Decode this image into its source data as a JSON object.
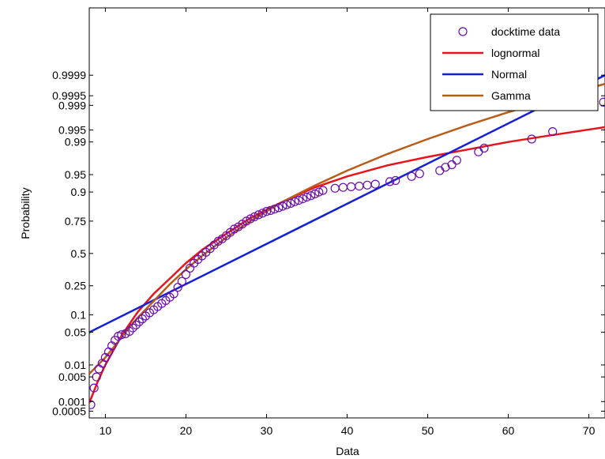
{
  "chart_data": {
    "type": "scatter",
    "xlabel": "Data",
    "ylabel": "Probability",
    "xlim": [
      8,
      72
    ],
    "xscale": "linear",
    "yscale": "normal-probability",
    "ylim_probability": [
      0.0003,
      0.99999985
    ],
    "xticks": [
      10,
      20,
      30,
      40,
      50,
      60,
      70
    ],
    "yticks": [
      {
        "p": 0.0005,
        "label": "0.0005"
      },
      {
        "p": 0.001,
        "label": "0.001"
      },
      {
        "p": 0.005,
        "label": "0.005"
      },
      {
        "p": 0.01,
        "label": "0.01"
      },
      {
        "p": 0.05,
        "label": "0.05"
      },
      {
        "p": 0.1,
        "label": "0.1"
      },
      {
        "p": 0.25,
        "label": "0.25"
      },
      {
        "p": 0.5,
        "label": "0.5"
      },
      {
        "p": 0.75,
        "label": "0.75"
      },
      {
        "p": 0.9,
        "label": "0.9"
      },
      {
        "p": 0.95,
        "label": "0.95"
      },
      {
        "p": 0.99,
        "label": "0.99"
      },
      {
        "p": 0.995,
        "label": "0.995"
      },
      {
        "p": 0.999,
        "label": "0.999"
      },
      {
        "p": 0.9995,
        "label": "0.9995"
      },
      {
        "p": 0.9999,
        "label": "0.9999"
      }
    ],
    "grid": false,
    "legend_position": "top-right",
    "series": [
      {
        "name": "docktime data",
        "kind": "markers",
        "marker": "circle",
        "color": "#6a0dad",
        "points": [
          [
            8.2,
            0.0008
          ],
          [
            8.6,
            0.0025
          ],
          [
            8.9,
            0.005
          ],
          [
            9.2,
            0.008
          ],
          [
            9.6,
            0.011
          ],
          [
            10.0,
            0.015
          ],
          [
            10.4,
            0.02
          ],
          [
            10.8,
            0.027
          ],
          [
            11.2,
            0.035
          ],
          [
            11.6,
            0.042
          ],
          [
            12.0,
            0.045
          ],
          [
            12.5,
            0.047
          ],
          [
            13.0,
            0.052
          ],
          [
            13.4,
            0.06
          ],
          [
            13.8,
            0.068
          ],
          [
            14.2,
            0.077
          ],
          [
            14.6,
            0.086
          ],
          [
            15.0,
            0.096
          ],
          [
            15.5,
            0.108
          ],
          [
            16.0,
            0.12
          ],
          [
            16.5,
            0.134
          ],
          [
            17.0,
            0.148
          ],
          [
            17.5,
            0.163
          ],
          [
            18.0,
            0.18
          ],
          [
            18.5,
            0.2
          ],
          [
            19.0,
            0.24
          ],
          [
            19.5,
            0.28
          ],
          [
            20.0,
            0.33
          ],
          [
            20.5,
            0.38
          ],
          [
            21.0,
            0.42
          ],
          [
            21.5,
            0.45
          ],
          [
            22.0,
            0.48
          ],
          [
            22.5,
            0.51
          ],
          [
            23.0,
            0.54
          ],
          [
            23.5,
            0.57
          ],
          [
            24.0,
            0.6
          ],
          [
            24.5,
            0.62
          ],
          [
            25.0,
            0.645
          ],
          [
            25.5,
            0.67
          ],
          [
            26.0,
            0.695
          ],
          [
            26.5,
            0.71
          ],
          [
            27.0,
            0.73
          ],
          [
            27.5,
            0.75
          ],
          [
            28.0,
            0.765
          ],
          [
            28.5,
            0.778
          ],
          [
            29.0,
            0.79
          ],
          [
            29.5,
            0.8
          ],
          [
            30.0,
            0.81
          ],
          [
            30.5,
            0.815
          ],
          [
            31.0,
            0.823
          ],
          [
            31.5,
            0.83
          ],
          [
            32.0,
            0.838
          ],
          [
            32.5,
            0.845
          ],
          [
            33.0,
            0.852
          ],
          [
            33.5,
            0.86
          ],
          [
            34.0,
            0.866
          ],
          [
            34.5,
            0.873
          ],
          [
            35.0,
            0.88
          ],
          [
            35.5,
            0.886
          ],
          [
            36.0,
            0.893
          ],
          [
            36.5,
            0.9
          ],
          [
            37.0,
            0.906
          ],
          [
            38.5,
            0.913
          ],
          [
            39.5,
            0.916
          ],
          [
            40.5,
            0.918
          ],
          [
            41.5,
            0.92
          ],
          [
            42.5,
            0.923
          ],
          [
            43.5,
            0.926
          ],
          [
            45.3,
            0.933
          ],
          [
            46.0,
            0.936
          ],
          [
            48.0,
            0.946
          ],
          [
            49.0,
            0.952
          ],
          [
            51.5,
            0.958
          ],
          [
            52.2,
            0.964
          ],
          [
            53.0,
            0.968
          ],
          [
            53.6,
            0.974
          ],
          [
            56.3,
            0.983
          ],
          [
            57.0,
            0.986
          ],
          [
            62.9,
            0.9915
          ],
          [
            65.5,
            0.9945
          ],
          [
            71.8,
            0.9992
          ]
        ]
      },
      {
        "name": "lognormal",
        "kind": "line",
        "color": "#e8141c",
        "points": [
          [
            8,
            0.0009
          ],
          [
            9,
            0.0035
          ],
          [
            10,
            0.01
          ],
          [
            12,
            0.043
          ],
          [
            14,
            0.11
          ],
          [
            16,
            0.2
          ],
          [
            18,
            0.3
          ],
          [
            20,
            0.42
          ],
          [
            22,
            0.53
          ],
          [
            25,
            0.66
          ],
          [
            28,
            0.77
          ],
          [
            32,
            0.86
          ],
          [
            36,
            0.916
          ],
          [
            40,
            0.946
          ],
          [
            45,
            0.967
          ],
          [
            50,
            0.978
          ],
          [
            55,
            0.985
          ],
          [
            60,
            0.99
          ],
          [
            65,
            0.993
          ],
          [
            72,
            0.9958
          ]
        ]
      },
      {
        "name": "Normal",
        "kind": "line",
        "color": "#1420d8",
        "points": [
          [
            8,
            0.05
          ],
          [
            72,
            0.9999
          ]
        ]
      },
      {
        "name": "Gamma",
        "kind": "line",
        "color": "#b85c1a",
        "points": [
          [
            8,
            0.006
          ],
          [
            10,
            0.015
          ],
          [
            12,
            0.04
          ],
          [
            14,
            0.09
          ],
          [
            16,
            0.16
          ],
          [
            18,
            0.26
          ],
          [
            20,
            0.37
          ],
          [
            22,
            0.48
          ],
          [
            25,
            0.63
          ],
          [
            28,
            0.75
          ],
          [
            32,
            0.86
          ],
          [
            36,
            0.922
          ],
          [
            40,
            0.958
          ],
          [
            45,
            0.981
          ],
          [
            50,
            0.9915
          ],
          [
            55,
            0.9963
          ],
          [
            60,
            0.9984
          ],
          [
            65,
            0.9993
          ],
          [
            72,
            0.9998
          ]
        ]
      }
    ]
  }
}
